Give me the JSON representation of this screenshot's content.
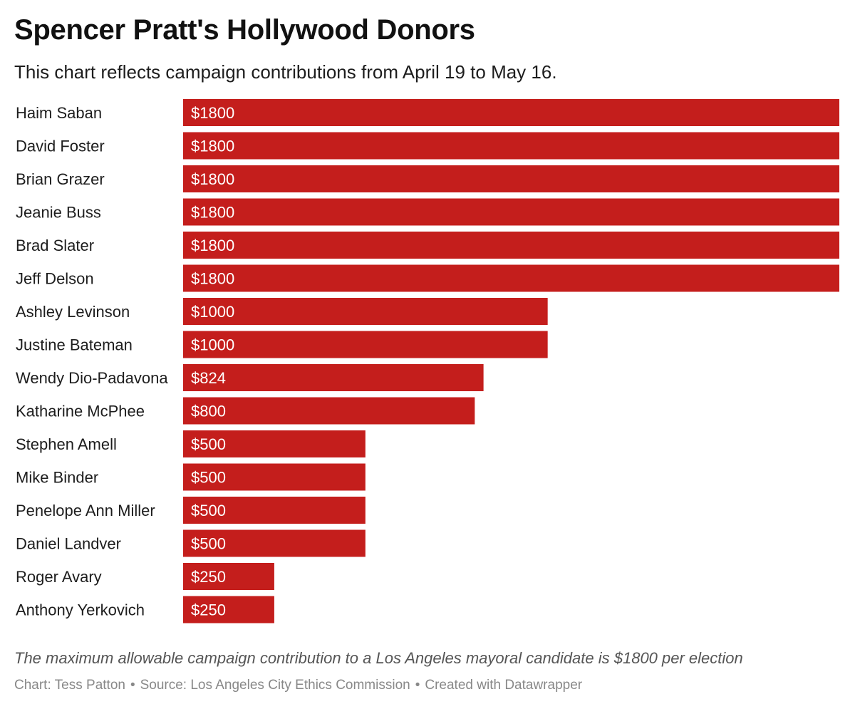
{
  "header": {
    "title": "Spencer Pratt's Hollywood Donors",
    "subtitle": "This chart reflects campaign contributions from April 19 to May 16."
  },
  "chart_data": {
    "type": "bar",
    "orientation": "horizontal",
    "title": "Spencer Pratt's Hollywood Donors",
    "subtitle": "This chart reflects campaign contributions from April 19 to May 16.",
    "categories": [
      "Haim Saban",
      "David Foster",
      "Brian Grazer",
      "Jeanie Buss",
      "Brad Slater",
      "Jeff Delson",
      "Ashley Levinson",
      "Justine Bateman",
      "Wendy Dio-Padavona",
      "Katharine McPhee",
      "Stephen Amell",
      "Mike Binder",
      "Penelope Ann Miller",
      "Daniel Landver",
      "Roger Avary",
      "Anthony Yerkovich"
    ],
    "values": [
      1800,
      1800,
      1800,
      1800,
      1800,
      1800,
      1000,
      1000,
      824,
      800,
      500,
      500,
      500,
      500,
      250,
      250
    ],
    "value_prefix": "$",
    "xlim": [
      0,
      1800
    ],
    "grid": false,
    "bar_color": "#c41e1c",
    "label_color": "#ffffff"
  },
  "notes": "The maximum allowable campaign contribution to a Los Angeles mayoral candidate is $1800 per election",
  "footer": {
    "chart_credit": "Chart: Tess Patton",
    "source": "Source: Los Angeles City Ethics Commission",
    "created_with": "Created with Datawrapper",
    "separator": "•"
  }
}
